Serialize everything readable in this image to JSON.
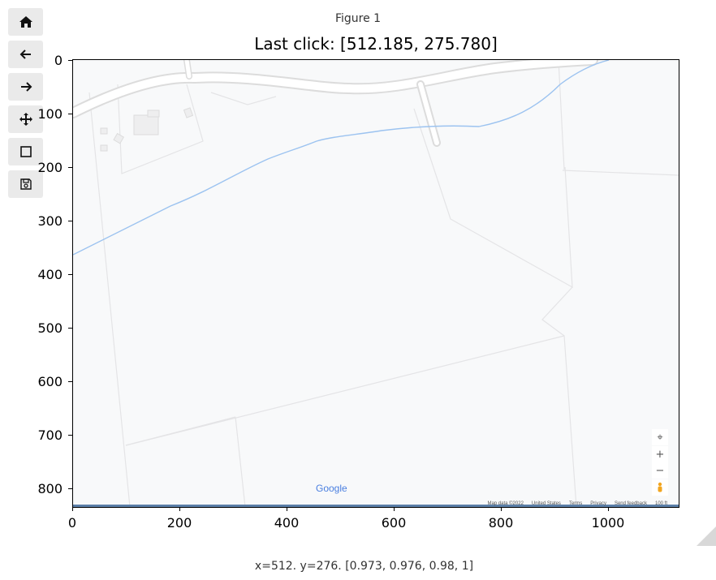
{
  "window": {
    "title": "Figure 1"
  },
  "toolbar": {
    "buttons": [
      {
        "name": "home",
        "icon": "home-icon"
      },
      {
        "name": "back",
        "icon": "arrow-left-icon"
      },
      {
        "name": "forward",
        "icon": "arrow-right-icon"
      },
      {
        "name": "pan",
        "icon": "move-icon"
      },
      {
        "name": "zoom",
        "icon": "zoom-rect-icon"
      },
      {
        "name": "save",
        "icon": "floppy-disk-icon"
      }
    ]
  },
  "plot": {
    "title": "Last click: [512.185, 275.780]",
    "y_ticks": [
      "0",
      "100",
      "200",
      "300",
      "400",
      "500",
      "600",
      "700",
      "800"
    ],
    "x_ticks": [
      "0",
      "200",
      "400",
      "600",
      "800",
      "1000"
    ]
  },
  "map": {
    "google_logo": "Google",
    "attribution": [
      "Map data ©2022",
      "United States",
      "Terms",
      "Privacy",
      "Send feedback",
      "100 ft"
    ],
    "zoom_in_label": "+",
    "zoom_out_label": "−",
    "colors": {
      "background": "#f8f9fa",
      "road": "#ffffff",
      "road_edge": "#dcdcdc",
      "water": "#9cc3f0"
    }
  },
  "status": {
    "text": "x=512. y=276. [0.973, 0.976, 0.98, 1]"
  }
}
